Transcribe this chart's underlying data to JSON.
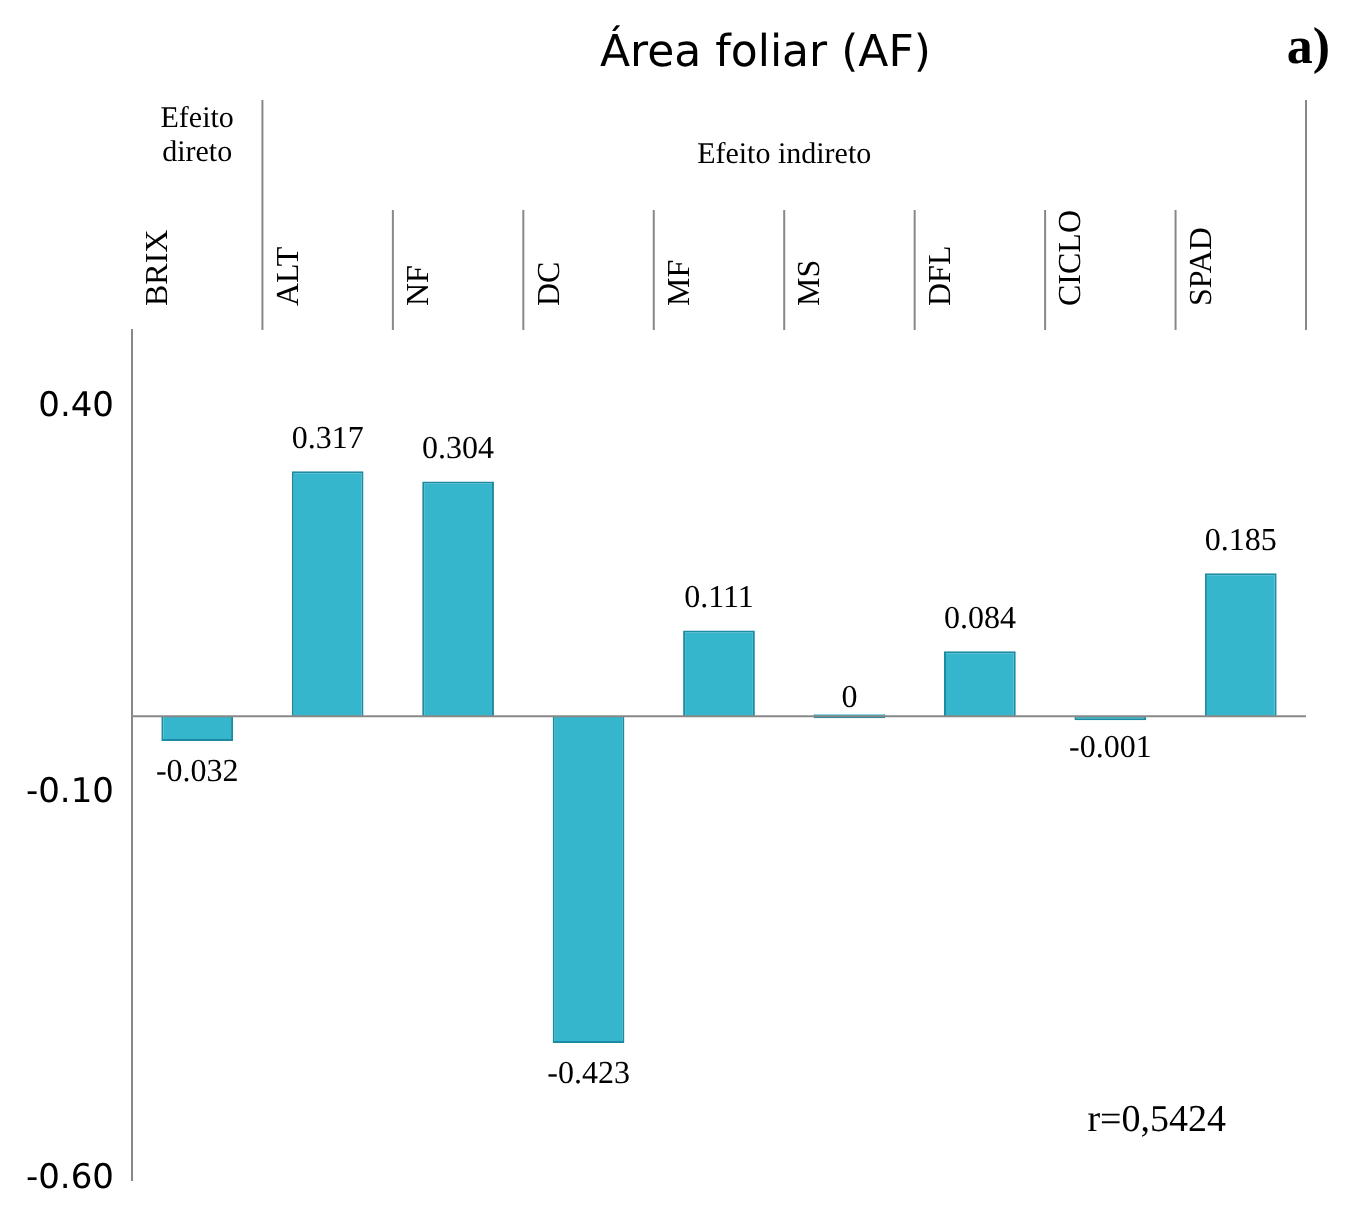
{
  "chart_data": {
    "type": "bar",
    "title": "Área foliar (AF)",
    "categories": [
      "BRIX",
      "ALT",
      "NF",
      "DC",
      "MF",
      "MS",
      "DFL",
      "CICLO",
      "SPAD"
    ],
    "values": [
      -0.032,
      0.317,
      0.304,
      -0.423,
      0.111,
      0,
      0.084,
      -0.001,
      0.185
    ],
    "color": "#35b6cc",
    "ylim": [
      -0.6,
      0.5
    ],
    "yticks": [
      {
        "value": 0.4,
        "label": "0.40"
      },
      {
        "value": -0.1,
        "label": "-0.10"
      },
      {
        "value": -0.6,
        "label": "-0.60"
      }
    ],
    "grid": false,
    "legend": false,
    "data_labels": true,
    "annotations": [
      "Efeito direto",
      "Efeito indireto",
      "r=0,5424",
      "a)"
    ]
  }
}
